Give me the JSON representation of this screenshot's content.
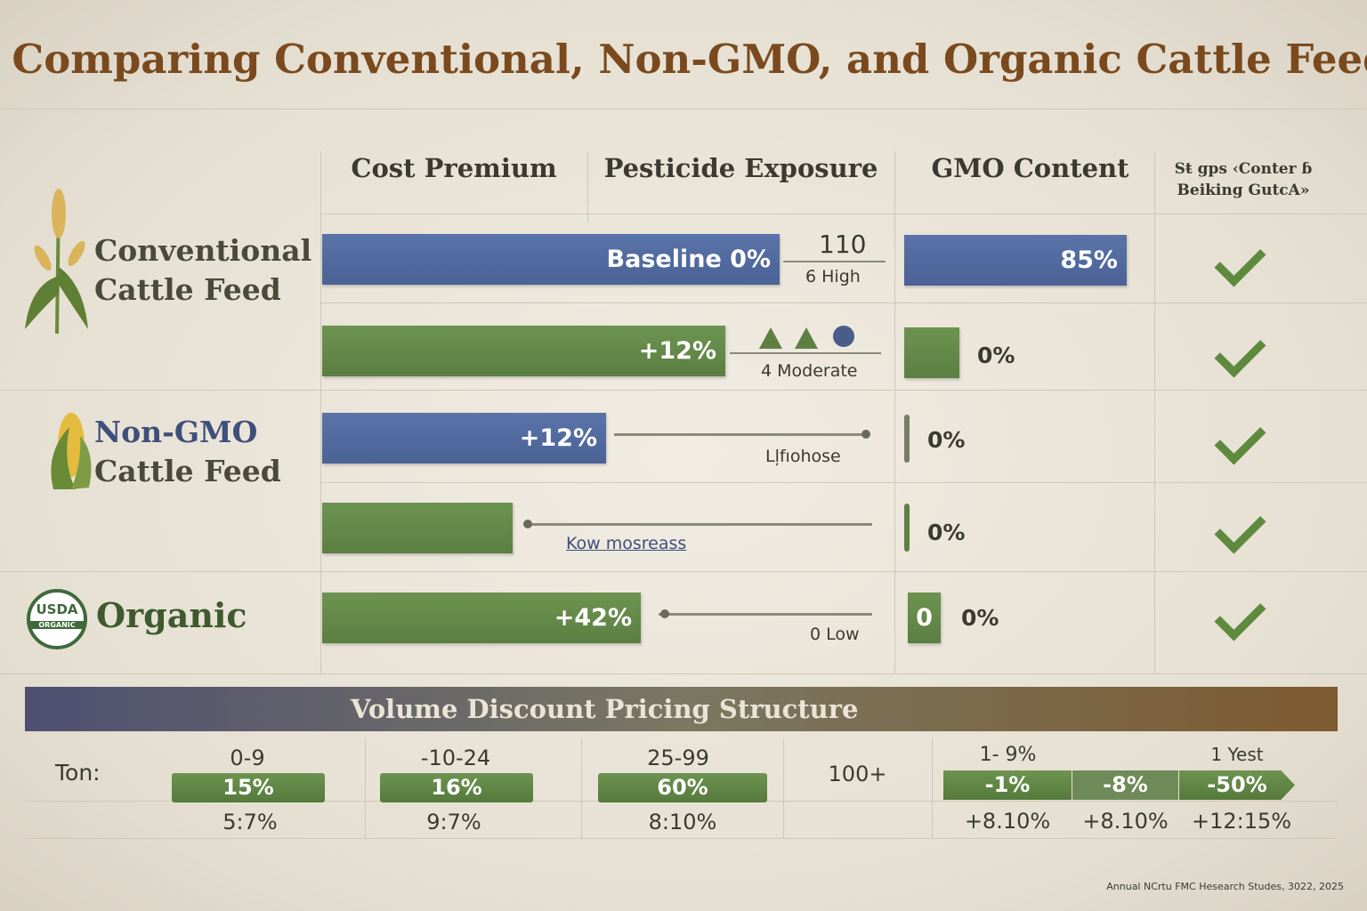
{
  "header": {
    "title": "Comparing Conventional, Non-GMO, and Organic Cattle Feed"
  },
  "columns": [
    "Cost Premium",
    "Pesticide Exposure",
    "GMO Content",
    [
      "Sŧ gps ‹Conter ɓ",
      "Beiking GutcA»"
    ]
  ],
  "groups": [
    {
      "name": [
        "Conventional",
        "Cattle Feed"
      ]
    },
    {
      "name": [
        "Non-GMO",
        "Cattle Feed"
      ]
    },
    {
      "name": [
        "Organic"
      ],
      "logo": [
        "USDA",
        "ORGANIC"
      ]
    }
  ],
  "rows": [
    {
      "cost": "Baseline 0%",
      "pesticide": [
        "110",
        "6 High"
      ],
      "gmo": "85%"
    },
    {
      "cost": "+12%",
      "pesticide": [
        "4 Moderate"
      ],
      "gmo": "0%"
    },
    {
      "cost": "+12%",
      "pesticide": [
        "Lļfıohose"
      ],
      "gmo": "0%"
    },
    {
      "pesticide": [
        "Kow mosreass"
      ],
      "gmo": "0%"
    },
    {
      "cost": "+42%",
      "pesticide": [
        "0 Low"
      ],
      "gmo_badge": "0",
      "gmo": "0%"
    }
  ],
  "discount": {
    "title": "Volume Discount Pricing Structure",
    "unit": "Ton:",
    "tiers": [
      {
        "range": "0-9",
        "badge": "15%",
        "sub": "5:7%"
      },
      {
        "range": "-10-24",
        "badge": "16%",
        "sub": "9:7%"
      },
      {
        "range": "25-99",
        "badge": "60%",
        "sub": "8:10%"
      },
      {
        "range": "100+"
      }
    ],
    "right_heads": [
      "1- 9%",
      "1 Yest"
    ],
    "arrows": [
      {
        "badge": "-1%",
        "sub": "+8.10%"
      },
      {
        "badge": "-8%",
        "sub": "+8.10%"
      },
      {
        "badge": "-50%",
        "sub": "+12:15%"
      }
    ]
  },
  "source": "Annual NCrtu FMC Hesearch Studes, 3022, 2025"
}
